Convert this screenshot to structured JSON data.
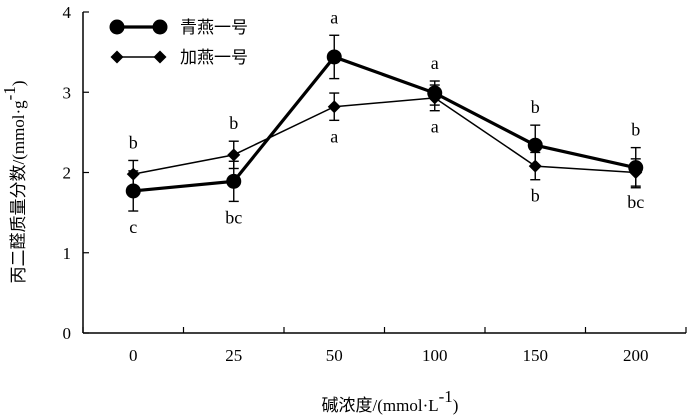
{
  "chart_data": {
    "type": "line",
    "categories": [
      "0",
      "25",
      "50",
      "100",
      "150",
      "200"
    ],
    "ylim": [
      0,
      4
    ],
    "yticks": [
      "0",
      "1",
      "2",
      "3",
      "4"
    ],
    "xlabel": "碱浓度/(mmol·L-1)",
    "xlabel_main": "碱浓度",
    "xlabel_unit": "/(mmol·L",
    "xlabel_sup": "-1",
    "xlabel_close": ")",
    "ylabel": "丙二醛质量分数/(mmol·g-1)",
    "ylabel_main": "丙二醛质量分数",
    "ylabel_unit": "/(mmol·g",
    "ylabel_sup": "-1",
    "ylabel_close": ")",
    "legend_position": "top-left",
    "series": [
      {
        "name": "青燕一号",
        "marker": "circle",
        "values": [
          1.77,
          1.89,
          3.44,
          2.99,
          2.34,
          2.06
        ],
        "errors": [
          0.25,
          0.25,
          0.27,
          0.15,
          0.25,
          0.25
        ],
        "sig": [
          "c",
          "bc",
          "a",
          "a",
          "b",
          "b"
        ],
        "sig_pos": [
          "below",
          "below",
          "above",
          "above",
          "above",
          "above"
        ]
      },
      {
        "name": "加燕一号",
        "marker": "diamond",
        "values": [
          1.98,
          2.22,
          2.82,
          2.93,
          2.08,
          2.0
        ],
        "errors": [
          0.17,
          0.17,
          0.17,
          0.16,
          0.17,
          0.17
        ],
        "sig": [
          "b",
          "b",
          "a",
          "a",
          "b",
          "bc"
        ],
        "sig_pos": [
          "above",
          "above",
          "below",
          "below",
          "below",
          "below"
        ]
      }
    ]
  }
}
